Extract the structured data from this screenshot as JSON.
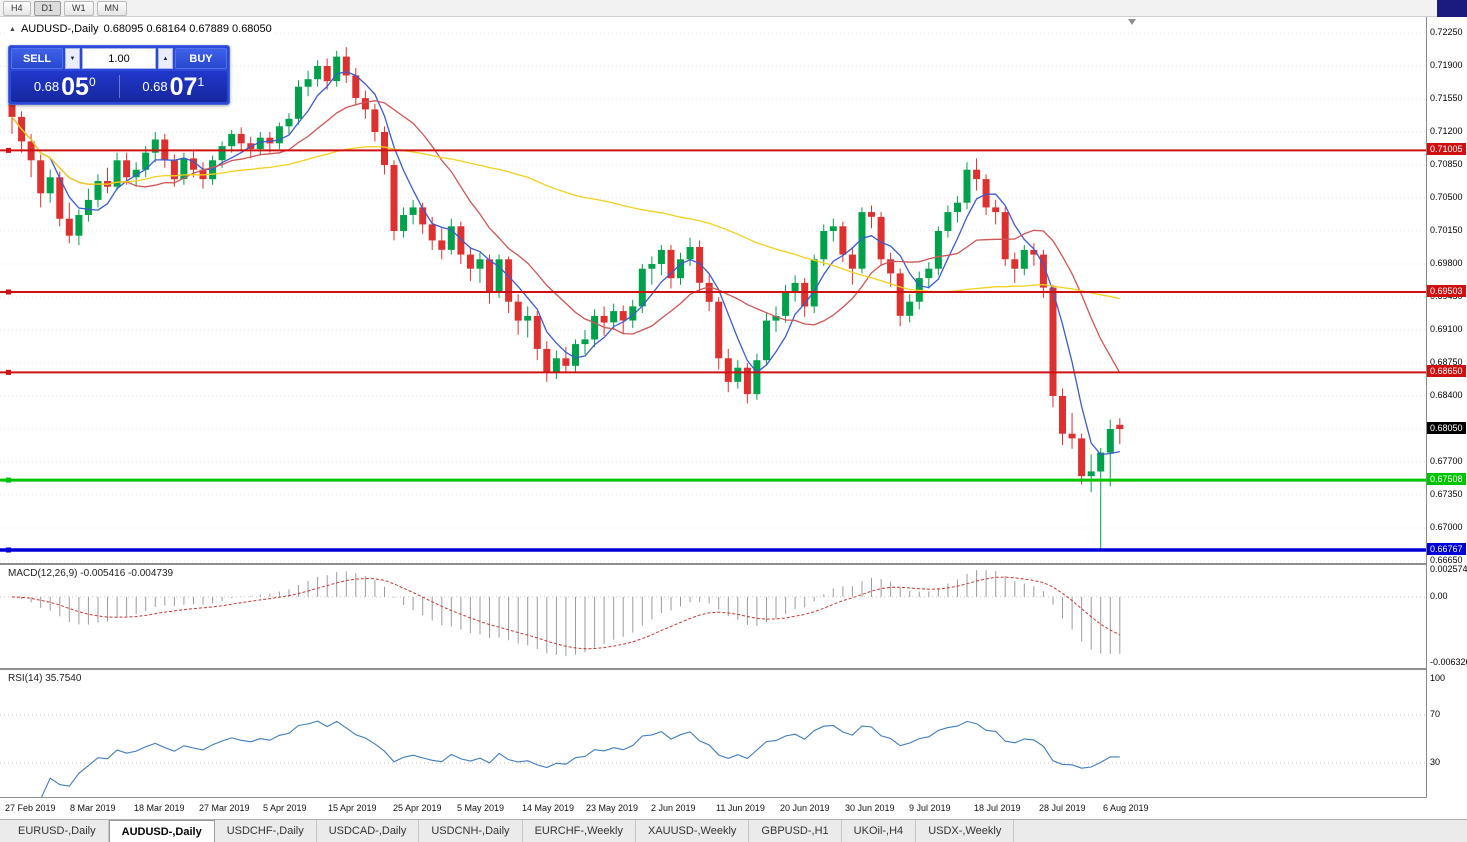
{
  "window": {
    "timeframes": [
      "H4",
      "D1",
      "W1",
      "MN"
    ],
    "active_timeframe": "D1"
  },
  "chart": {
    "title": "AUDUSD-,Daily",
    "ohlc_text": "0.68095 0.68164 0.67889 0.68050",
    "trade_panel": {
      "sell_label": "SELL",
      "buy_label": "BUY",
      "volume": "1.00",
      "spin_down": "▼",
      "spin_up": "▲",
      "sell_price_main": "0.68",
      "sell_price_big": "05",
      "sell_price_sup": "0",
      "buy_price_main": "0.68",
      "buy_price_big": "07",
      "buy_price_sup": "1"
    },
    "price_axis_ticks": [
      "0.72250",
      "0.71900",
      "0.71550",
      "0.71200",
      "0.70850",
      "0.70500",
      "0.70150",
      "0.69800",
      "0.69450",
      "0.69100",
      "0.68750",
      "0.68400",
      "0.68050",
      "0.67700",
      "0.67350",
      "0.67000",
      "0.66650"
    ],
    "current_price": 0.6805,
    "current_price_label": "0.68050",
    "hlines": [
      {
        "price": 0.71005,
        "label": "0.71005",
        "color": "#d01010",
        "width": 2
      },
      {
        "price": 0.69503,
        "label": "0.69503",
        "color": "#d01010",
        "width": 2
      },
      {
        "price": 0.6865,
        "label": "0.68650",
        "color": "#d01010",
        "width": 2
      },
      {
        "price": 0.67508,
        "label": "0.67508",
        "color": "#00c400",
        "width": 3
      },
      {
        "price": 0.66767,
        "label": "0.66767",
        "color": "#0000d8",
        "width": 3.5
      }
    ]
  },
  "macd_panel": {
    "label": "MACD(12,26,9) -0.005416 -0.004739",
    "scale_max": "0.002574",
    "scale_zero": "0.00",
    "scale_min": "-0.006326"
  },
  "rsi_panel": {
    "label": "RSI(14) 35.7540",
    "scale": [
      "100",
      "70",
      "30"
    ],
    "levels": [
      70,
      30
    ]
  },
  "date_axis": [
    "27 Feb 2019",
    "8 Mar 2019",
    "18 Mar 2019",
    "27 Mar 2019",
    "5 Apr 2019",
    "15 Apr 2019",
    "25 Apr 2019",
    "5 May 2019",
    "14 May 2019",
    "23 May 2019",
    "2 Jun 2019",
    "11 Jun 2019",
    "20 Jun 2019",
    "30 Jun 2019",
    "9 Jul 2019",
    "18 Jul 2019",
    "28 Jul 2019",
    "6 Aug 2019"
  ],
  "tabs": [
    {
      "label": "EURUSD-,Daily",
      "active": false
    },
    {
      "label": "AUDUSD-,Daily",
      "active": true
    },
    {
      "label": "USDCHF-,Daily",
      "active": false
    },
    {
      "label": "USDCAD-,Daily",
      "active": false
    },
    {
      "label": "USDCNH-,Daily",
      "active": false
    },
    {
      "label": "EURCHF-,Weekly",
      "active": false
    },
    {
      "label": "XAUUSD-,Weekly",
      "active": false
    },
    {
      "label": "GBPUSD-,H1",
      "active": false
    },
    {
      "label": "UKOil-,H4",
      "active": false
    },
    {
      "label": "USDX-,Weekly",
      "active": false
    }
  ],
  "colors": {
    "candle_up": "#00A14B",
    "candle_dn": "#DF3030",
    "macd_hist": "#9b9b9b",
    "macd_signal": "#cc3333",
    "rsi_line": "#3f7cbf",
    "grid": "#e4e4e4",
    "level_dotted": "#b8b8b8"
  },
  "chart_data": {
    "type": "candlestick",
    "symbol": "AUDUSD",
    "timeframe": "Daily",
    "title": "AUDUSD-,Daily",
    "x_axis_labels": [
      "27 Feb 2019",
      "8 Mar 2019",
      "18 Mar 2019",
      "27 Mar 2019",
      "5 Apr 2019",
      "15 Apr 2019",
      "25 Apr 2019",
      "5 May 2019",
      "14 May 2019",
      "23 May 2019",
      "2 Jun 2019",
      "11 Jun 2019",
      "20 Jun 2019",
      "30 Jun 2019",
      "9 Jul 2019",
      "18 Jul 2019",
      "28 Jul 2019",
      "6 Aug 2019"
    ],
    "y_axis_range": [
      0.6665,
      0.7225
    ],
    "horizontal_levels": [
      0.71005,
      0.69503,
      0.6865,
      0.67508,
      0.66767
    ],
    "moving_averages": [
      {
        "name": "fast-ma",
        "period": 5,
        "color": "#3b5bd0"
      },
      {
        "name": "medium-ma",
        "period": 13,
        "color": "#d05555"
      },
      {
        "name": "slow-ma",
        "period": 55,
        "color": "#f2d11c"
      }
    ],
    "indicators": [
      {
        "name": "MACD",
        "params": "12,26,9",
        "values": "-0.005416 -0.004739",
        "scale": [
          0.002574,
          -0.006326
        ]
      },
      {
        "name": "RSI",
        "params": "14",
        "value": "35.7540",
        "levels": [
          70,
          30
        ]
      }
    ],
    "ohlc": [
      [
        0.715,
        0.7158,
        0.7118,
        0.7136
      ],
      [
        0.7136,
        0.7142,
        0.7098,
        0.711
      ],
      [
        0.711,
        0.7118,
        0.7072,
        0.709
      ],
      [
        0.709,
        0.7096,
        0.704,
        0.7055
      ],
      [
        0.7055,
        0.708,
        0.7045,
        0.7072
      ],
      [
        0.7072,
        0.7078,
        0.702,
        0.7028
      ],
      [
        0.7028,
        0.7045,
        0.7002,
        0.701
      ],
      [
        0.701,
        0.7038,
        0.7,
        0.7032
      ],
      [
        0.7032,
        0.706,
        0.7025,
        0.7048
      ],
      [
        0.7048,
        0.7075,
        0.704,
        0.7068
      ],
      [
        0.7068,
        0.7082,
        0.7055,
        0.7062
      ],
      [
        0.7062,
        0.7098,
        0.7058,
        0.709
      ],
      [
        0.709,
        0.7098,
        0.7064,
        0.7072
      ],
      [
        0.7072,
        0.7088,
        0.7062,
        0.708
      ],
      [
        0.708,
        0.7105,
        0.7072,
        0.7098
      ],
      [
        0.7098,
        0.712,
        0.7088,
        0.7112
      ],
      [
        0.7112,
        0.7118,
        0.7082,
        0.709
      ],
      [
        0.709,
        0.7096,
        0.7062,
        0.707
      ],
      [
        0.707,
        0.7098,
        0.7064,
        0.7092
      ],
      [
        0.7092,
        0.71,
        0.7072,
        0.708
      ],
      [
        0.708,
        0.7088,
        0.706,
        0.707
      ],
      [
        0.707,
        0.7095,
        0.7064,
        0.709
      ],
      [
        0.709,
        0.711,
        0.7082,
        0.7105
      ],
      [
        0.7105,
        0.7122,
        0.7098,
        0.7118
      ],
      [
        0.7118,
        0.7125,
        0.71,
        0.7108
      ],
      [
        0.7108,
        0.7115,
        0.7092,
        0.7102
      ],
      [
        0.7102,
        0.712,
        0.7095,
        0.7114
      ],
      [
        0.7114,
        0.712,
        0.7098,
        0.7108
      ],
      [
        0.7108,
        0.713,
        0.7102,
        0.7126
      ],
      [
        0.7126,
        0.714,
        0.7118,
        0.7134
      ],
      [
        0.7134,
        0.7175,
        0.7128,
        0.7168
      ],
      [
        0.7168,
        0.7185,
        0.7158,
        0.7176
      ],
      [
        0.7176,
        0.7196,
        0.7168,
        0.719
      ],
      [
        0.719,
        0.7198,
        0.7165,
        0.7174
      ],
      [
        0.7174,
        0.7206,
        0.7168,
        0.72
      ],
      [
        0.72,
        0.721,
        0.7172,
        0.718
      ],
      [
        0.718,
        0.7188,
        0.7148,
        0.7156
      ],
      [
        0.7156,
        0.7164,
        0.7134,
        0.7144
      ],
      [
        0.7144,
        0.715,
        0.711,
        0.712
      ],
      [
        0.712,
        0.7126,
        0.7075,
        0.7085
      ],
      [
        0.7085,
        0.709,
        0.7005,
        0.7015
      ],
      [
        0.7015,
        0.704,
        0.7008,
        0.7032
      ],
      [
        0.7032,
        0.7048,
        0.7022,
        0.704
      ],
      [
        0.704,
        0.7045,
        0.7012,
        0.7022
      ],
      [
        0.7022,
        0.703,
        0.6995,
        0.7005
      ],
      [
        0.7005,
        0.7018,
        0.6985,
        0.6995
      ],
      [
        0.6995,
        0.7028,
        0.699,
        0.702
      ],
      [
        0.702,
        0.7025,
        0.698,
        0.699
      ],
      [
        0.699,
        0.6998,
        0.6962,
        0.6975
      ],
      [
        0.6975,
        0.6992,
        0.696,
        0.6985
      ],
      [
        0.6985,
        0.699,
        0.6938,
        0.695
      ],
      [
        0.695,
        0.699,
        0.6944,
        0.6985
      ],
      [
        0.6985,
        0.6988,
        0.6928,
        0.694
      ],
      [
        0.694,
        0.6948,
        0.6905,
        0.692
      ],
      [
        0.692,
        0.6935,
        0.6902,
        0.6925
      ],
      [
        0.6925,
        0.693,
        0.6878,
        0.689
      ],
      [
        0.689,
        0.6898,
        0.6855,
        0.6865
      ],
      [
        0.6865,
        0.6888,
        0.6858,
        0.688
      ],
      [
        0.688,
        0.6892,
        0.6864,
        0.6872
      ],
      [
        0.6872,
        0.69,
        0.6866,
        0.6895
      ],
      [
        0.6895,
        0.691,
        0.6884,
        0.69
      ],
      [
        0.69,
        0.6932,
        0.6892,
        0.6925
      ],
      [
        0.6925,
        0.6935,
        0.6904,
        0.6918
      ],
      [
        0.6918,
        0.6938,
        0.691,
        0.693
      ],
      [
        0.693,
        0.6936,
        0.6906,
        0.692
      ],
      [
        0.692,
        0.6942,
        0.6912,
        0.6935
      ],
      [
        0.6935,
        0.698,
        0.6928,
        0.6975
      ],
      [
        0.6975,
        0.6988,
        0.6958,
        0.698
      ],
      [
        0.698,
        0.7,
        0.6968,
        0.6995
      ],
      [
        0.6995,
        0.7,
        0.6954,
        0.6965
      ],
      [
        0.6965,
        0.6992,
        0.6958,
        0.6985
      ],
      [
        0.6985,
        0.7008,
        0.6978,
        0.6998
      ],
      [
        0.6998,
        0.7005,
        0.695,
        0.696
      ],
      [
        0.696,
        0.6968,
        0.693,
        0.694
      ],
      [
        0.694,
        0.6945,
        0.6868,
        0.688
      ],
      [
        0.688,
        0.689,
        0.6844,
        0.6855
      ],
      [
        0.6855,
        0.6878,
        0.6848,
        0.687
      ],
      [
        0.687,
        0.6875,
        0.6832,
        0.6842
      ],
      [
        0.6842,
        0.6885,
        0.6836,
        0.6878
      ],
      [
        0.6878,
        0.6928,
        0.6872,
        0.692
      ],
      [
        0.692,
        0.6935,
        0.6908,
        0.6925
      ],
      [
        0.6925,
        0.6958,
        0.6918,
        0.695
      ],
      [
        0.695,
        0.6968,
        0.694,
        0.696
      ],
      [
        0.696,
        0.6965,
        0.6924,
        0.6935
      ],
      [
        0.6935,
        0.699,
        0.6928,
        0.6985
      ],
      [
        0.6985,
        0.7022,
        0.6978,
        0.7015
      ],
      [
        0.7015,
        0.7028,
        0.7004,
        0.702
      ],
      [
        0.702,
        0.7025,
        0.6982,
        0.699
      ],
      [
        0.699,
        0.6998,
        0.6958,
        0.6975
      ],
      [
        0.6975,
        0.704,
        0.697,
        0.7035
      ],
      [
        0.7035,
        0.7042,
        0.7018,
        0.703
      ],
      [
        0.703,
        0.7035,
        0.6978,
        0.6985
      ],
      [
        0.6985,
        0.6992,
        0.6956,
        0.697
      ],
      [
        0.697,
        0.6975,
        0.6914,
        0.6925
      ],
      [
        0.6925,
        0.6948,
        0.6918,
        0.694
      ],
      [
        0.694,
        0.6972,
        0.6932,
        0.6965
      ],
      [
        0.6965,
        0.6982,
        0.6954,
        0.6975
      ],
      [
        0.6975,
        0.702,
        0.6968,
        0.7015
      ],
      [
        0.7015,
        0.7042,
        0.7008,
        0.7035
      ],
      [
        0.7035,
        0.7052,
        0.7024,
        0.7045
      ],
      [
        0.7045,
        0.7088,
        0.7038,
        0.708
      ],
      [
        0.708,
        0.7092,
        0.7058,
        0.707
      ],
      [
        0.707,
        0.7075,
        0.7032,
        0.704
      ],
      [
        0.704,
        0.7048,
        0.7022,
        0.7035
      ],
      [
        0.7035,
        0.704,
        0.6978,
        0.6985
      ],
      [
        0.6985,
        0.6992,
        0.696,
        0.6975
      ],
      [
        0.6975,
        0.7,
        0.6968,
        0.6995
      ],
      [
        0.6995,
        0.7002,
        0.6978,
        0.699
      ],
      [
        0.699,
        0.6995,
        0.6944,
        0.6955
      ],
      [
        0.6955,
        0.6958,
        0.6828,
        0.684
      ],
      [
        0.684,
        0.6848,
        0.6788,
        0.68
      ],
      [
        0.68,
        0.6822,
        0.6784,
        0.6795
      ],
      [
        0.6795,
        0.68,
        0.6746,
        0.6755
      ],
      [
        0.6755,
        0.6778,
        0.6738,
        0.676
      ],
      [
        0.676,
        0.6785,
        0.6677,
        0.678
      ],
      [
        0.678,
        0.6815,
        0.6744,
        0.6805
      ],
      [
        0.68095,
        0.68164,
        0.67889,
        0.6805
      ]
    ]
  }
}
